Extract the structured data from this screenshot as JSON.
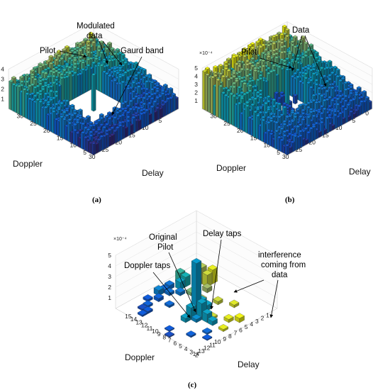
{
  "chart_data": [
    {
      "type": "bar3d",
      "panel": "(a)",
      "xlabel": "Doppler",
      "ylabel": "Delay",
      "x_ticks": [
        "5",
        "10",
        "15",
        "20",
        "25",
        "30"
      ],
      "y_ticks": [
        "5",
        "10",
        "15",
        "20",
        "25",
        "30"
      ],
      "z_ticks": [
        "1",
        "2",
        "3",
        "4"
      ],
      "zlim": [
        0,
        4
      ],
      "grid_size": [
        32,
        32
      ],
      "guard_band": {
        "doppler": [
          9,
          24
        ],
        "delay": [
          9,
          24
        ]
      },
      "pilot": {
        "doppler": 16,
        "delay": 16,
        "value": 3.6
      },
      "data_value_range": [
        0.9,
        3.3
      ],
      "annotations": [
        "Modulated data",
        "Pilot",
        "Gaurd band"
      ]
    },
    {
      "type": "bar3d",
      "panel": "(b)",
      "xlabel": "Doppler",
      "ylabel": "Delay",
      "z_exponent": "×10⁻⁴",
      "x_ticks": [
        "0",
        "5",
        "10",
        "15",
        "20",
        "25",
        "30"
      ],
      "y_ticks": [
        "5",
        "10",
        "15",
        "20",
        "25",
        "30"
      ],
      "z_ticks": [
        "1",
        "2",
        "3",
        "4",
        "5"
      ],
      "zlim": [
        0,
        5
      ],
      "pilot": {
        "doppler": 16,
        "delay": 16,
        "value": 5.0
      },
      "data_value_range": [
        0.5,
        4.8
      ],
      "annotations": [
        "Data",
        "Pilot"
      ]
    },
    {
      "type": "bar3d",
      "panel": "(c)",
      "xlabel": "Doppler",
      "ylabel": "Delay",
      "z_exponent": "×10⁻⁴",
      "x_ticks": [
        "1",
        "2",
        "3",
        "4",
        "5",
        "6",
        "7",
        "8",
        "9",
        "10",
        "11",
        "12",
        "13",
        "14"
      ],
      "y_ticks": [
        "2",
        "3",
        "4",
        "5",
        "6",
        "7",
        "8",
        "9",
        "10",
        "11",
        "12",
        "13",
        "14",
        "15"
      ],
      "z_ticks": [
        "1",
        "2",
        "3",
        "4",
        "5"
      ],
      "zlim": [
        0,
        5
      ],
      "pilot": {
        "doppler": 8,
        "delay": 8,
        "value": 5.0
      },
      "doppler_taps": [
        {
          "doppler": 7,
          "delay": 8,
          "value": 1.2
        },
        {
          "doppler": 9,
          "delay": 8,
          "value": 1.1
        },
        {
          "doppler": 6,
          "delay": 8,
          "value": 0.5
        },
        {
          "doppler": 10,
          "delay": 8,
          "value": 0.4
        }
      ],
      "delay_taps": [
        {
          "doppler": 8,
          "delay": 9,
          "value": 1.5
        },
        {
          "doppler": 8,
          "delay": 10,
          "value": 0.8
        },
        {
          "doppler": 8,
          "delay": 11,
          "value": 0.4
        }
      ],
      "annotations": [
        "Original Pilot",
        "Delay taps",
        "Doppler taps",
        "interference coming from data"
      ]
    }
  ],
  "labels": {
    "a": {
      "modulated": "Modulated",
      "data": "data",
      "pilot": "Pilot",
      "guard": "Gaurd band",
      "doppler": "Doppler",
      "delay": "Delay",
      "caption": "(a)"
    },
    "b": {
      "data": "Data",
      "pilot": "Pilot",
      "doppler": "Doppler",
      "delay": "Delay",
      "caption": "(b)",
      "exp": "×10⁻⁴"
    },
    "c": {
      "original": "Original",
      "pilot": "Pilot",
      "delay_taps": "Delay taps",
      "doppler_taps": "Doppler taps",
      "interference1": "interference",
      "interference2": "coming from",
      "interference3": "data",
      "doppler": "Doppler",
      "delay": "Delay",
      "caption": "(c)",
      "exp": "×10⁻⁴"
    }
  }
}
